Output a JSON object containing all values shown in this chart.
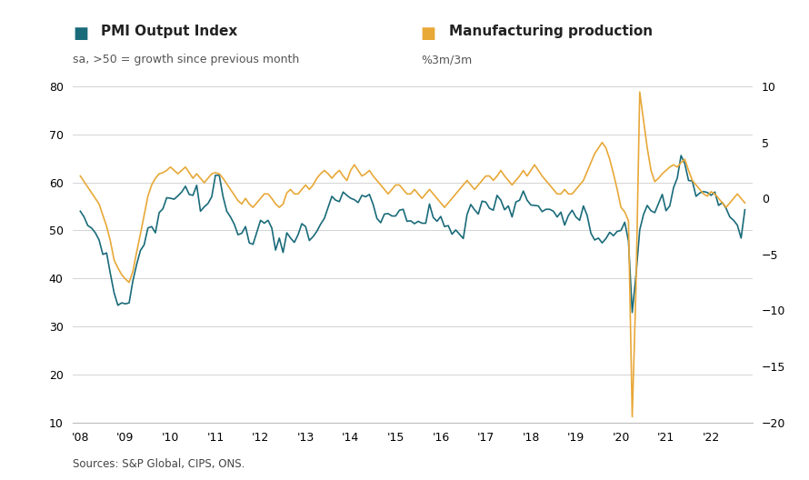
{
  "title_left": "PMI Output Index",
  "title_right": "Manufacturing production",
  "subtitle_left": "sa, >50 = growth since previous month",
  "subtitle_right": "%3m/3m",
  "source": "Sources: S&P Global, CIPS, ONS.",
  "pmi_color": "#1a6b7a",
  "manuf_color": "#e8a838",
  "bg_color": "#ffffff",
  "grid_color": "#cccccc",
  "ylim_left": [
    10,
    80
  ],
  "ylim_right": [
    -20,
    10
  ],
  "yticks_left": [
    10,
    20,
    30,
    40,
    50,
    60,
    70,
    80
  ],
  "yticks_right": [
    -20,
    -15,
    -10,
    -5,
    0,
    5,
    10
  ],
  "xtick_years": [
    "'08",
    "'09",
    "'10",
    "'11",
    "'12",
    "'13",
    "'14",
    "'15",
    "'16",
    "'17",
    "'18",
    "'19",
    "'20",
    "'21",
    "'22"
  ],
  "pmi_data": [
    54.0,
    52.8,
    51.0,
    50.5,
    49.5,
    48.0,
    45.0,
    45.3,
    41.0,
    37.0,
    34.4,
    34.9,
    34.7,
    34.9,
    39.5,
    42.9,
    45.8,
    47.0,
    50.5,
    50.8,
    49.5,
    53.7,
    54.5,
    56.8,
    56.7,
    56.5,
    57.2,
    58.0,
    59.2,
    57.5,
    57.3,
    59.4,
    54.0,
    54.9,
    55.6,
    57.0,
    61.5,
    61.5,
    57.1,
    54.0,
    52.8,
    51.3,
    49.1,
    49.4,
    50.8,
    47.4,
    47.1,
    49.6,
    52.1,
    51.5,
    52.1,
    50.5,
    45.9,
    48.4,
    45.4,
    49.5,
    48.4,
    47.5,
    49.1,
    51.4,
    50.8,
    47.9,
    48.7,
    49.8,
    51.3,
    52.5,
    54.8,
    57.1,
    56.3,
    56.0,
    58.0,
    57.3,
    56.7,
    56.4,
    55.8,
    57.3,
    57.0,
    57.5,
    55.4,
    52.5,
    51.6,
    53.4,
    53.5,
    53.0,
    53.0,
    54.2,
    54.4,
    51.9,
    52.0,
    51.4,
    51.9,
    51.5,
    51.5,
    55.5,
    52.7,
    51.9,
    52.9,
    50.8,
    51.0,
    49.2,
    50.1,
    49.2,
    48.3,
    53.3,
    55.4,
    54.3,
    53.4,
    56.1,
    55.9,
    54.6,
    54.2,
    57.3,
    56.3,
    54.3,
    55.1,
    52.8,
    55.9,
    56.3,
    58.2,
    56.3,
    55.3,
    55.2,
    55.1,
    53.9,
    54.4,
    54.4,
    54.0,
    52.8,
    53.8,
    51.1,
    53.1,
    54.2,
    52.8,
    52.1,
    55.1,
    53.1,
    49.4,
    48.0,
    48.4,
    47.4,
    48.3,
    49.6,
    48.9,
    49.8,
    50.0,
    51.7,
    47.8,
    32.9,
    40.7,
    50.1,
    53.3,
    55.2,
    54.1,
    53.7,
    55.6,
    57.5,
    54.1,
    55.1,
    58.9,
    60.9,
    65.6,
    63.9,
    60.4,
    60.3,
    57.1,
    57.8,
    58.1,
    57.9,
    57.3,
    58.0,
    55.2,
    55.8,
    54.6,
    52.8,
    52.1,
    51.1,
    48.4,
    54.3
  ],
  "manuf_data": [
    2.0,
    1.5,
    1.0,
    0.5,
    0.0,
    -0.5,
    -1.5,
    -2.5,
    -3.8,
    -5.5,
    -6.2,
    -6.8,
    -7.2,
    -7.5,
    -6.5,
    -4.8,
    -3.2,
    -1.5,
    0.2,
    1.2,
    1.8,
    2.2,
    2.3,
    2.5,
    2.8,
    2.5,
    2.2,
    2.5,
    2.8,
    2.3,
    1.8,
    2.2,
    1.8,
    1.4,
    1.8,
    2.2,
    2.3,
    2.2,
    1.8,
    1.3,
    0.8,
    0.3,
    -0.2,
    -0.5,
    0.0,
    -0.5,
    -0.8,
    -0.4,
    0.0,
    0.4,
    0.4,
    0.0,
    -0.5,
    -0.8,
    -0.5,
    0.5,
    0.8,
    0.4,
    0.4,
    0.8,
    1.2,
    0.8,
    1.2,
    1.8,
    2.2,
    2.5,
    2.2,
    1.8,
    2.2,
    2.5,
    2.0,
    1.6,
    2.5,
    3.0,
    2.5,
    2.0,
    2.2,
    2.5,
    2.0,
    1.6,
    1.2,
    0.8,
    0.4,
    0.8,
    1.2,
    1.2,
    0.8,
    0.4,
    0.4,
    0.8,
    0.4,
    0.0,
    0.4,
    0.8,
    0.4,
    0.0,
    -0.4,
    -0.8,
    -0.4,
    0.0,
    0.4,
    0.8,
    1.2,
    1.6,
    1.2,
    0.8,
    1.2,
    1.6,
    2.0,
    2.0,
    1.6,
    2.0,
    2.5,
    2.0,
    1.6,
    1.2,
    1.6,
    2.0,
    2.5,
    2.0,
    2.5,
    3.0,
    2.5,
    2.0,
    1.6,
    1.2,
    0.8,
    0.4,
    0.4,
    0.8,
    0.4,
    0.4,
    0.8,
    1.2,
    1.6,
    2.4,
    3.2,
    4.0,
    4.5,
    5.0,
    4.5,
    3.5,
    2.2,
    0.8,
    -0.8,
    -1.2,
    -2.0,
    -19.5,
    -8.0,
    9.5,
    7.0,
    4.5,
    2.5,
    1.5,
    1.8,
    2.2,
    2.5,
    2.8,
    3.0,
    2.8,
    3.2,
    3.5,
    2.5,
    1.6,
    1.2,
    0.8,
    0.4,
    0.2,
    0.6,
    0.4,
    0.0,
    -0.4,
    -0.8,
    -0.4,
    0.0,
    0.4,
    0.0,
    -0.4
  ]
}
